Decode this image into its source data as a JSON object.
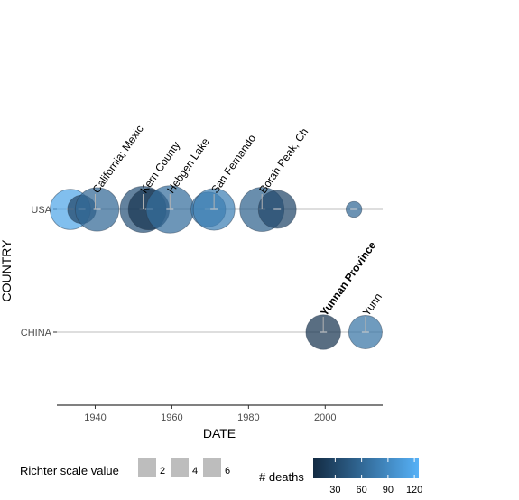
{
  "chart_data": {
    "type": "scatter",
    "title": "",
    "xlabel": "DATE",
    "ylabel": "COUNTRY",
    "xlim": [
      1930,
      2015
    ],
    "x_ticks": [
      "1940",
      "1960",
      "1980",
      "2000"
    ],
    "categories": [
      "USA",
      "CHINA"
    ],
    "grid": "horizontal lines at categories",
    "points": [
      {
        "country": "USA",
        "x": 1933.5,
        "richter": 6.4,
        "deaths": 115
      },
      {
        "country": "USA",
        "x": 1936.5,
        "richter": 4.5,
        "deaths": 30
      },
      {
        "country": "USA",
        "x": 1940.5,
        "richter": 6.9,
        "deaths": 60
      },
      {
        "country": "USA",
        "x": 1952.5,
        "richter": 7.3,
        "deaths": 40
      },
      {
        "country": "USA",
        "x": 1954.0,
        "richter": 6.5,
        "deaths": 15
      },
      {
        "country": "USA",
        "x": 1959.5,
        "richter": 7.5,
        "deaths": 65
      },
      {
        "country": "USA",
        "x": 1969.5,
        "richter": 5.5,
        "deaths": 75
      },
      {
        "country": "USA",
        "x": 1971.0,
        "richter": 6.6,
        "deaths": 80
      },
      {
        "country": "USA",
        "x": 1983.5,
        "richter": 7.0,
        "deaths": 55
      },
      {
        "country": "USA",
        "x": 1987.5,
        "richter": 6.0,
        "deaths": 30
      },
      {
        "country": "USA",
        "x": 2007.5,
        "richter": 2.5,
        "deaths": 60
      },
      {
        "country": "CHINA",
        "x": 1999.5,
        "richter": 5.5,
        "deaths": 15
      },
      {
        "country": "CHINA",
        "x": 2010.5,
        "richter": 5.3,
        "deaths": 70
      }
    ],
    "annotations": [
      {
        "country": "USA",
        "x": 1940.0,
        "text": "California; Mexic",
        "bold": false
      },
      {
        "country": "USA",
        "x": 1952.5,
        "text": "Kern County",
        "bold": false
      },
      {
        "country": "USA",
        "x": 1959.5,
        "text": "Hebgen Lake",
        "bold": false
      },
      {
        "country": "USA",
        "x": 1971.0,
        "text": "San Fernando",
        "bold": false
      },
      {
        "country": "USA",
        "x": 1983.5,
        "text": "Borah Peak, Ch",
        "bold": false
      },
      {
        "country": "CHINA",
        "x": 1999.5,
        "text": "Yunnan Province",
        "bold": true
      },
      {
        "country": "CHINA",
        "x": 2010.5,
        "text": "Yunn",
        "bold": false
      }
    ],
    "legend_size": {
      "title": "Richter scale value",
      "values": [
        2,
        4,
        6
      ],
      "labels": [
        "2",
        "4",
        "6"
      ]
    },
    "legend_color": {
      "title": "# deaths",
      "range": [
        5,
        125
      ],
      "ticks": [
        30,
        60,
        90,
        120
      ],
      "tick_labels": [
        "30",
        "60",
        "90",
        "120"
      ],
      "low_color": "#132B43",
      "high_color": "#56B1F7"
    },
    "legend_placement": "bottom"
  }
}
